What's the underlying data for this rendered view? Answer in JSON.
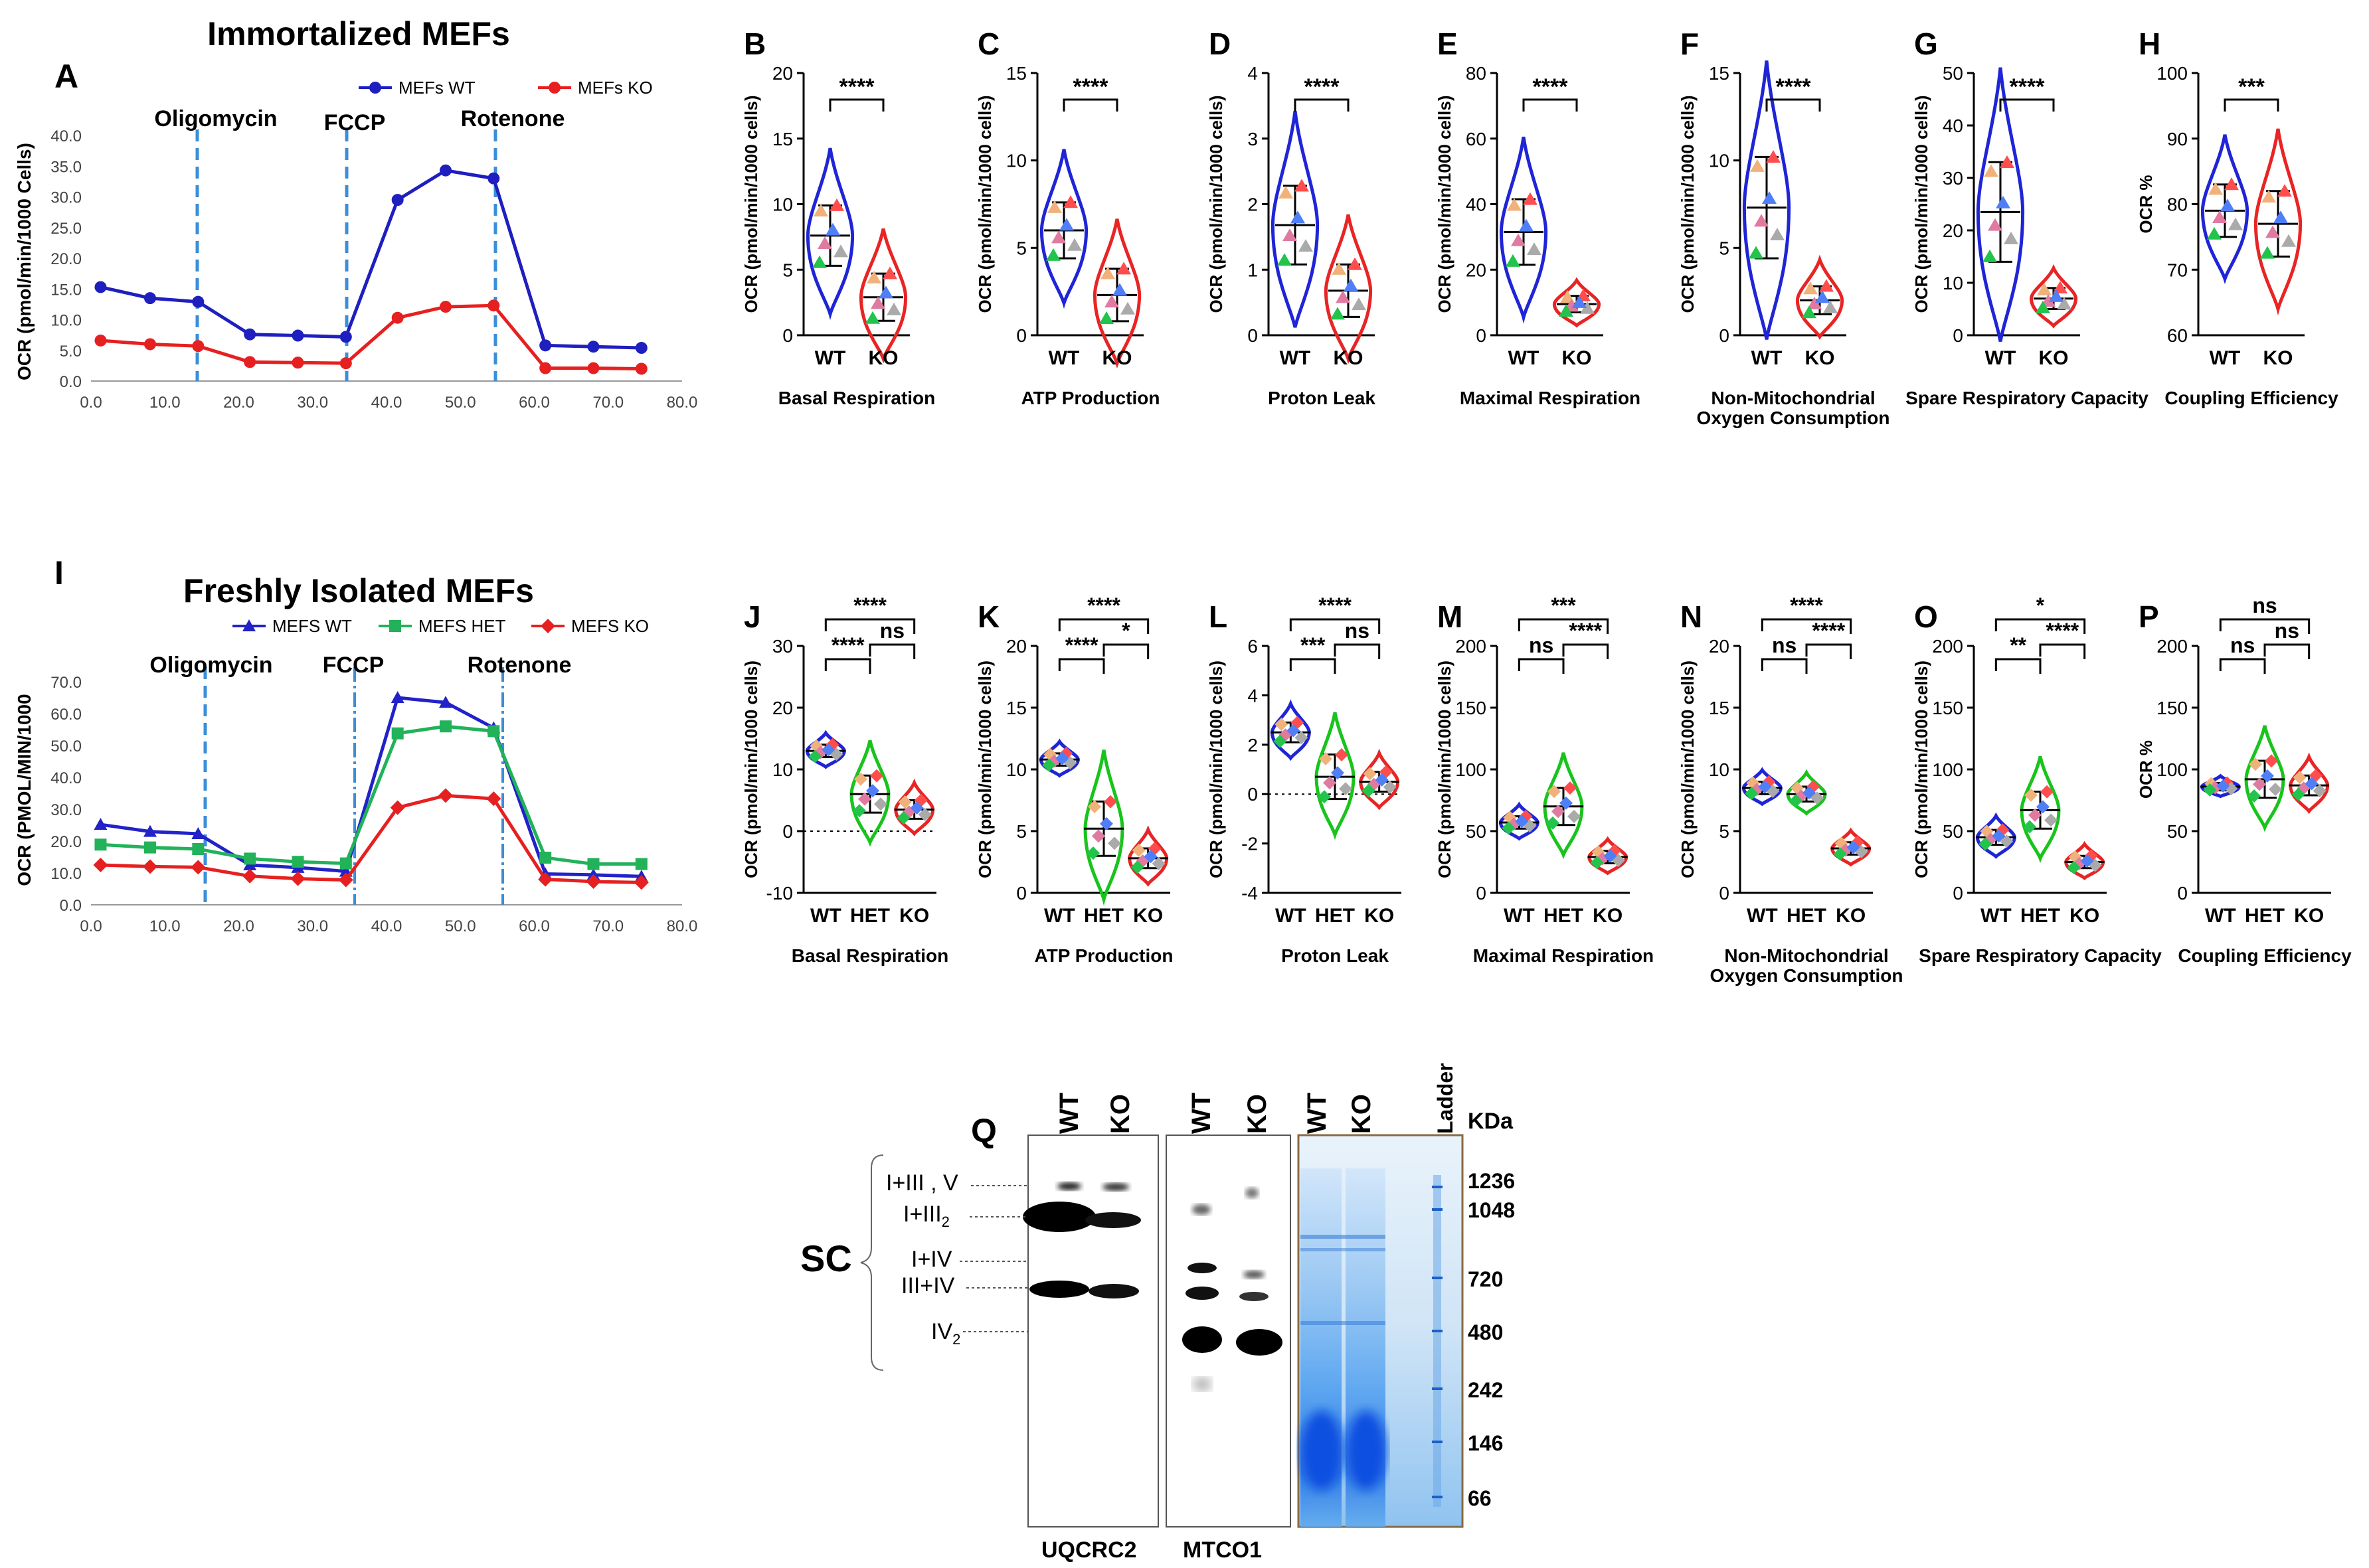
{
  "figure": {
    "row1": {
      "title": "Immortalized MEFs",
      "panel_letter": "A",
      "ylabel": "OCR (pmol/min/1000 Cells)",
      "y_ticks": [
        "0.0",
        "5.0",
        "10.0",
        "15.0",
        "20.0",
        "25.0",
        "30.0",
        "35.0",
        "40.0"
      ],
      "x_ticks": [
        "0.0",
        "10.0",
        "20.0",
        "30.0",
        "40.0",
        "50.0",
        "60.0",
        "70.0",
        "80.0"
      ],
      "legend": [
        "MEFs WT",
        "MEFs KO"
      ],
      "injections": [
        "Oligomycin",
        "FCCP",
        "Rotenone"
      ]
    },
    "row2": {
      "title": "Freshly Isolated MEFs",
      "panel_letter": "I",
      "ylabel": "OCR (PMOL/MIN/1000",
      "y_ticks": [
        "0.0",
        "10.0",
        "20.0",
        "30.0",
        "40.0",
        "50.0",
        "60.0",
        "70.0"
      ],
      "x_ticks": [
        "0.0",
        "10.0",
        "20.0",
        "30.0",
        "40.0",
        "50.0",
        "60.0",
        "70.0",
        "80.0"
      ],
      "legend": [
        "MEFS WT",
        "MEFS HET",
        "MEFS KO"
      ],
      "injections": [
        "Oligomycin",
        "FCCP",
        "Rotenone"
      ]
    },
    "violins_row1": [
      {
        "letter": "B",
        "label": "Basal Respiration",
        "ylabel": "OCR (pmol/min/1000 cells)",
        "ticks": [
          "0",
          "5",
          "10",
          "15",
          "20"
        ],
        "sig": "****",
        "groups": [
          "WT",
          "KO"
        ]
      },
      {
        "letter": "C",
        "label": "ATP Production",
        "ylabel": "OCR (pmol/min/1000 cells)",
        "ticks": [
          "0",
          "5",
          "10",
          "15"
        ],
        "sig": "****",
        "groups": [
          "WT",
          "KO"
        ]
      },
      {
        "letter": "D",
        "label": "Proton Leak",
        "ylabel": "OCR (pmol/min/1000 cells)",
        "ticks": [
          "0",
          "1",
          "2",
          "3",
          "4"
        ],
        "sig": "****",
        "groups": [
          "WT",
          "KO"
        ]
      },
      {
        "letter": "E",
        "label": "Maximal Respiration",
        "ylabel": "OCR (pmol/min/1000 cells)",
        "ticks": [
          "0",
          "20",
          "40",
          "60",
          "80"
        ],
        "sig": "****",
        "groups": [
          "WT",
          "KO"
        ]
      },
      {
        "letter": "F",
        "label": "Non-Mitochondrial",
        "label2": "Oxygen Consumption",
        "ylabel": "OCR (pmol/min/1000 cells)",
        "ticks": [
          "0",
          "5",
          "10",
          "15"
        ],
        "sig": "****",
        "groups": [
          "WT",
          "KO"
        ]
      },
      {
        "letter": "G",
        "label": "Spare Respiratory Capacity",
        "ylabel": "OCR (pmol/min/1000 cells)",
        "ticks": [
          "0",
          "10",
          "20",
          "30",
          "40",
          "50"
        ],
        "sig": "****",
        "groups": [
          "WT",
          "KO"
        ]
      },
      {
        "letter": "H",
        "label": "Coupling Efficiency",
        "ylabel": "OCR %",
        "ticks": [
          "60",
          "70",
          "80",
          "90",
          "100"
        ],
        "sig": "***",
        "groups": [
          "WT",
          "KO"
        ]
      }
    ],
    "violins_row2": [
      {
        "letter": "J",
        "label": "Basal Respiration",
        "ylabel": "OCR (pmol/min/1000 cells)",
        "ticks": [
          "-10",
          "0",
          "10",
          "20",
          "30"
        ],
        "sigs": [
          "****",
          "****",
          "ns"
        ],
        "groups": [
          "WT",
          "HET",
          "KO"
        ]
      },
      {
        "letter": "K",
        "label": "ATP Production",
        "ylabel": "OCR (pmol/min/1000 cells)",
        "ticks": [
          "0",
          "5",
          "10",
          "15",
          "20"
        ],
        "sigs": [
          "****",
          "****",
          "*"
        ],
        "groups": [
          "WT",
          "HET",
          "KO"
        ]
      },
      {
        "letter": "L",
        "label": "Proton Leak",
        "ylabel": "OCR (pmol/min/1000 cells)",
        "ticks": [
          "-4",
          "-2",
          "0",
          "2",
          "4",
          "6"
        ],
        "sigs": [
          "****",
          "***",
          "ns"
        ],
        "groups": [
          "WT",
          "HET",
          "KO"
        ]
      },
      {
        "letter": "M",
        "label": "Maximal Respiration",
        "ylabel": "OCR (pmol/min/1000 cells)",
        "ticks": [
          "0",
          "50",
          "100",
          "150",
          "200"
        ],
        "sigs": [
          "***",
          "ns",
          "****"
        ],
        "groups": [
          "WT",
          "HET",
          "KO"
        ]
      },
      {
        "letter": "N",
        "label": "Non-Mitochondrial",
        "label2": "Oxygen Consumption",
        "ylabel": "OCR (pmol/min/1000 cells)",
        "ticks": [
          "0",
          "5",
          "10",
          "15",
          "20"
        ],
        "sigs": [
          "****",
          "ns",
          "****"
        ],
        "groups": [
          "WT",
          "HET",
          "KO"
        ]
      },
      {
        "letter": "O",
        "label": "Spare Respiratory Capacity",
        "ylabel": "OCR (pmol/min/1000 cells)",
        "ticks": [
          "0",
          "50",
          "100",
          "150",
          "200"
        ],
        "sigs": [
          "*",
          "**",
          "****"
        ],
        "groups": [
          "WT",
          "HET",
          "KO"
        ]
      },
      {
        "letter": "P",
        "label": "Coupling Efficiency",
        "ylabel": "OCR %",
        "ticks": [
          "0",
          "50",
          "100",
          "150",
          "200"
        ],
        "sigs": [
          "ns",
          "ns",
          "ns"
        ],
        "groups": [
          "WT",
          "HET",
          "KO"
        ]
      }
    ],
    "blot": {
      "letter": "Q",
      "lanes": [
        "WT",
        "KO",
        "WT",
        "KO",
        "WT",
        "KO"
      ],
      "ladder_label": "Ladder",
      "kda_label": "KDa",
      "kda": [
        "1236",
        "1048",
        "720",
        "480",
        "242",
        "146",
        "66"
      ],
      "bands": [
        "I+III , V",
        "I+III",
        "I+IV",
        "III+IV",
        "IV"
      ],
      "subscripts": [
        "2",
        "2"
      ],
      "sc_label": "SC",
      "antibodies": [
        "UQCRC2",
        "MTCO1"
      ]
    }
  },
  "chart_data": [
    {
      "type": "line",
      "title": "Immortalized MEFs",
      "xlabel": "",
      "ylabel": "OCR (pmol/min/1000 Cells)",
      "xlim": [
        0,
        80
      ],
      "ylim": [
        0,
        40
      ],
      "x": [
        1.3,
        8,
        14.5,
        21.5,
        28,
        34.5,
        41.5,
        48,
        54.5,
        61.5,
        68,
        74.5
      ],
      "series": [
        {
          "name": "MEFs WT",
          "color": "#1f1fbf",
          "values": [
            15.3,
            13.5,
            12.9,
            7.6,
            7.4,
            7.2,
            29.5,
            34.3,
            33.0,
            5.8,
            5.6,
            5.4
          ]
        },
        {
          "name": "MEFs KO",
          "color": "#e62020",
          "values": [
            6.6,
            6.0,
            5.7,
            3.1,
            3.0,
            2.9,
            10.3,
            12.1,
            12.3,
            2.1,
            2.1,
            2.0
          ]
        }
      ],
      "annotations": [
        "Oligomycin",
        "FCCP",
        "Rotenone"
      ]
    },
    {
      "type": "line",
      "title": "Freshly Isolated MEFs",
      "xlabel": "",
      "ylabel": "OCR (PMOL/MIN/1000",
      "xlim": [
        0,
        80
      ],
      "ylim": [
        0,
        70
      ],
      "x": [
        1.3,
        8,
        14.5,
        21.5,
        28,
        34.5,
        41.5,
        48,
        54.5,
        61.5,
        68,
        74.5
      ],
      "series": [
        {
          "name": "MEFS WT",
          "color": "#2222c8",
          "values": [
            25.2,
            23.0,
            22.3,
            12.5,
            11.7,
            10.5,
            65.0,
            63.5,
            55.5,
            9.7,
            9.4,
            8.9
          ]
        },
        {
          "name": "MEFS HET",
          "color": "#21b25a",
          "values": [
            18.9,
            18.0,
            17.5,
            14.5,
            13.5,
            13.0,
            53.8,
            56.0,
            54.5,
            14.8,
            12.8,
            12.8
          ]
        },
        {
          "name": "MEFS KO",
          "color": "#e62020",
          "values": [
            12.5,
            12.0,
            11.8,
            9.0,
            8.2,
            7.8,
            30.5,
            34.3,
            33.3,
            8.0,
            7.3,
            7.0
          ]
        }
      ],
      "annotations": [
        "Oligomycin",
        "FCCP",
        "Rotenone"
      ]
    },
    {
      "type": "violin",
      "title": "Basal Respiration",
      "groups": [
        "WT",
        "KO"
      ],
      "means": [
        7.6,
        2.9
      ],
      "sd": [
        2.3,
        1.8
      ],
      "ylim": [
        0,
        20
      ]
    },
    {
      "type": "violin",
      "title": "ATP Production",
      "groups": [
        "WT",
        "KO"
      ],
      "means": [
        6.0,
        2.3
      ],
      "sd": [
        1.6,
        1.5
      ],
      "ylim": [
        0,
        15
      ]
    },
    {
      "type": "violin",
      "title": "Proton Leak",
      "groups": [
        "WT",
        "KO"
      ],
      "means": [
        1.68,
        0.68
      ],
      "sd": [
        0.6,
        0.4
      ],
      "ylim": [
        0,
        4
      ]
    },
    {
      "type": "violin",
      "title": "Maximal Respiration",
      "groups": [
        "WT",
        "KO"
      ],
      "means": [
        31.5,
        9.5
      ],
      "sd": [
        10,
        2.5
      ],
      "ylim": [
        0,
        80
      ]
    },
    {
      "type": "violin",
      "title": "Non-Mitochondrial Oxygen Consumption",
      "groups": [
        "WT",
        "KO"
      ],
      "means": [
        7.3,
        2.0
      ],
      "sd": [
        2.9,
        0.8
      ],
      "ylim": [
        0,
        15
      ]
    },
    {
      "type": "violin",
      "title": "Spare Respiratory Capacity",
      "groups": [
        "WT",
        "KO"
      ],
      "means": [
        23.5,
        7.0
      ],
      "sd": [
        9.5,
        2.0
      ],
      "ylim": [
        0,
        50
      ]
    },
    {
      "type": "violin",
      "title": "Coupling Efficiency",
      "groups": [
        "WT",
        "KO"
      ],
      "means": [
        79,
        77
      ],
      "sd": [
        4,
        5
      ],
      "ylim": [
        60,
        100
      ]
    },
    {
      "type": "violin",
      "title": "Basal Respiration",
      "groups": [
        "WT",
        "HET",
        "KO"
      ],
      "means": [
        13,
        6,
        3.5
      ],
      "sd": [
        1,
        3,
        1.5
      ],
      "ylim": [
        -10,
        30
      ]
    },
    {
      "type": "violin",
      "title": "ATP Production",
      "groups": [
        "WT",
        "HET",
        "KO"
      ],
      "means": [
        10.8,
        5.2,
        2.8
      ],
      "sd": [
        0.5,
        2.2,
        0.8
      ],
      "ylim": [
        0,
        20
      ]
    },
    {
      "type": "violin",
      "title": "Proton Leak",
      "groups": [
        "WT",
        "HET",
        "KO"
      ],
      "means": [
        2.5,
        0.7,
        0.5
      ],
      "sd": [
        0.4,
        0.9,
        0.4
      ],
      "ylim": [
        -4,
        6
      ]
    },
    {
      "type": "violin",
      "title": "Maximal Respiration",
      "groups": [
        "WT",
        "HET",
        "KO"
      ],
      "means": [
        57,
        70,
        29
      ],
      "sd": [
        5,
        15,
        5
      ],
      "ylim": [
        0,
        200
      ]
    },
    {
      "type": "violin",
      "title": "Non-Mitochondrial Oxygen Consumption",
      "groups": [
        "WT",
        "HET",
        "KO"
      ],
      "means": [
        8.5,
        8.0,
        3.6
      ],
      "sd": [
        0.5,
        0.6,
        0.5
      ],
      "ylim": [
        0,
        20
      ]
    },
    {
      "type": "violin",
      "title": "Spare Respiratory Capacity",
      "groups": [
        "WT",
        "HET",
        "KO"
      ],
      "means": [
        45,
        67,
        25
      ],
      "sd": [
        6,
        15,
        5
      ],
      "ylim": [
        0,
        200
      ]
    },
    {
      "type": "violin",
      "title": "Coupling Efficiency",
      "groups": [
        "WT",
        "HET",
        "KO"
      ],
      "means": [
        86,
        92,
        87
      ],
      "sd": [
        3,
        15,
        8
      ],
      "ylim": [
        0,
        200
      ]
    }
  ]
}
